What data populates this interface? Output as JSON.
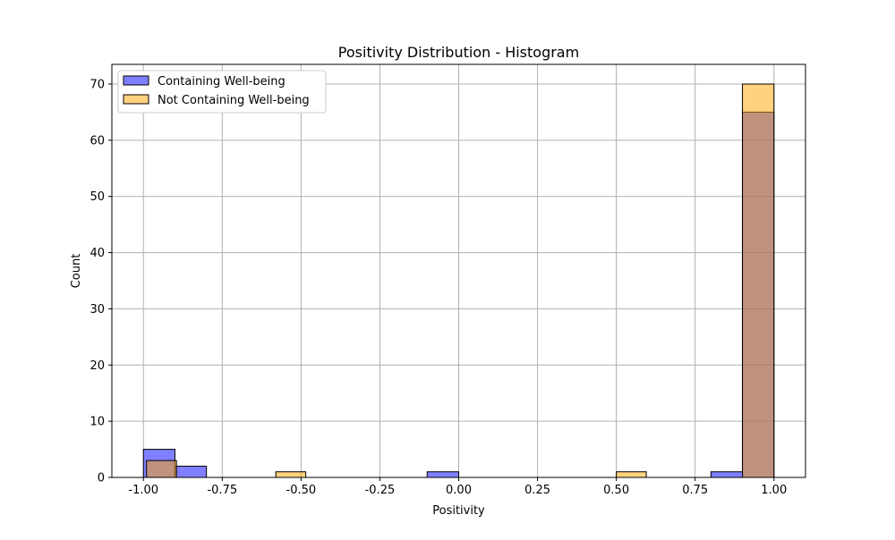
{
  "chart_data": {
    "type": "bar",
    "title": "Positivity Distribution - Histogram",
    "xlabel": "Positivity",
    "ylabel": "Count",
    "xlim": [
      -1.1,
      1.1
    ],
    "ylim": [
      0,
      73.5
    ],
    "xticks": [
      "-1.00",
      "-0.75",
      "-0.50",
      "-0.25",
      "0.00",
      "0.25",
      "0.50",
      "0.75",
      "1.00"
    ],
    "xtick_values": [
      -1.0,
      -0.75,
      -0.5,
      -0.25,
      0.0,
      0.25,
      0.5,
      0.75,
      1.0
    ],
    "yticks": [
      "0",
      "10",
      "20",
      "30",
      "40",
      "50",
      "60",
      "70"
    ],
    "ytick_values": [
      0,
      10,
      20,
      30,
      40,
      50,
      60,
      70
    ],
    "grid": true,
    "legend_position": "upper-left",
    "series": [
      {
        "name": "Containing Well-being",
        "color": "#0000ff",
        "alpha": 0.5,
        "bins": [
          {
            "x0": -1.0,
            "x1": -0.9,
            "count": 5
          },
          {
            "x0": -0.9,
            "x1": -0.8,
            "count": 2
          },
          {
            "x0": -0.1,
            "x1": 0.0,
            "count": 1
          },
          {
            "x0": 0.8,
            "x1": 0.9,
            "count": 1
          },
          {
            "x0": 0.9,
            "x1": 1.0,
            "count": 65
          }
        ]
      },
      {
        "name": "Not Containing Well-being",
        "color": "#ffa500",
        "alpha": 0.5,
        "bins": [
          {
            "x0": -0.99,
            "x1": -0.895,
            "count": 3
          },
          {
            "x0": -0.58,
            "x1": -0.485,
            "count": 1
          },
          {
            "x0": 0.5,
            "x1": 0.595,
            "count": 1
          },
          {
            "x0": 0.9,
            "x1": 1.0,
            "count": 70
          }
        ]
      }
    ]
  }
}
